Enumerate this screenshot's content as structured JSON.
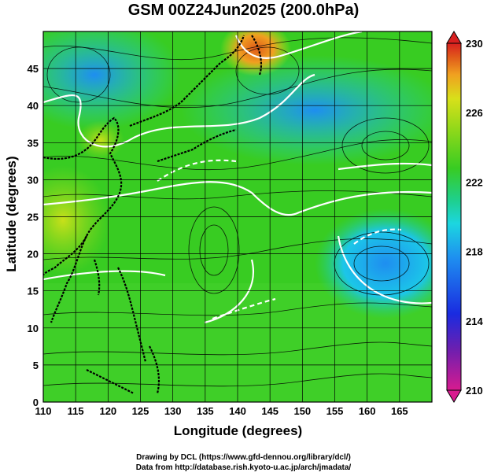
{
  "title": "GSM 00Z24Jun2025 (200.0hPa)",
  "xlabel": "Longitude (degrees)",
  "ylabel": "Latitude  (degrees)",
  "credit_line1": "Drawing by DCL (https://www.gfd-dennou.org/library/dcl/)",
  "credit_line2": "Data from http://database.rish.kyoto-u.ac.jp/arch/jmadata/",
  "map": {
    "lon_range": [
      110,
      170
    ],
    "lat_range": [
      0,
      50
    ],
    "lon_ticks": [
      "110",
      "115",
      "120",
      "125",
      "130",
      "135",
      "140",
      "145",
      "150",
      "155",
      "160",
      "165"
    ],
    "lat_ticks": [
      "0",
      "5",
      "10",
      "15",
      "20",
      "25",
      "30",
      "35",
      "40",
      "45"
    ],
    "features": [
      "temperature-shading",
      "streamlines",
      "white-contours",
      "coastlines",
      "grid-lines"
    ]
  },
  "colorbar": {
    "labels": [
      "230",
      "226",
      "222",
      "218",
      "214",
      "210"
    ],
    "min": 210,
    "max": 230,
    "colors": [
      "#d81b8f",
      "#6b1fb0",
      "#1a2be0",
      "#1e8ef0",
      "#1cd6e0",
      "#1fcf8a",
      "#38cc22",
      "#8fd81a",
      "#d8e01a",
      "#f0a020",
      "#e05a1a",
      "#d82020"
    ]
  }
}
